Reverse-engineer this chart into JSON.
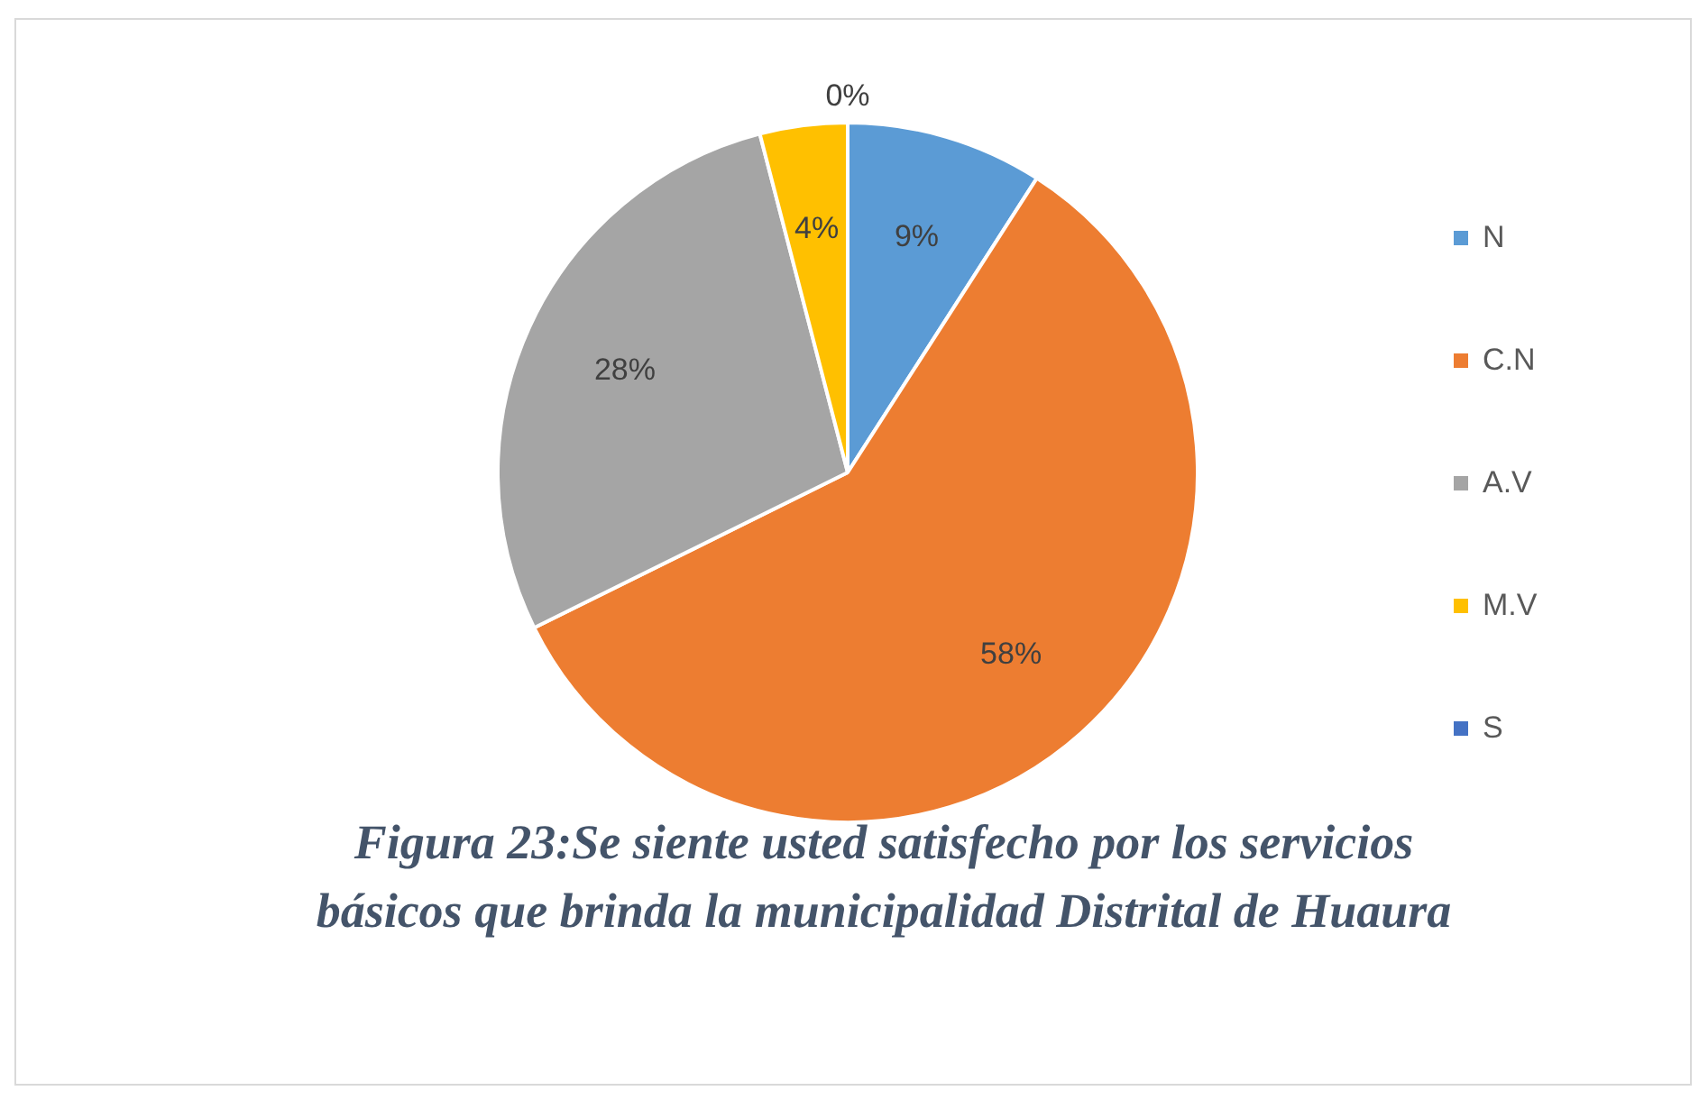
{
  "chart_data": {
    "type": "pie",
    "title": "Figura 23:Se siente usted satisfecho por los servicios básicos que brinda la municipalidad Distrital de Huaura",
    "categories": [
      "N",
      "C.N",
      "A.V",
      "M.V",
      "S"
    ],
    "values": [
      9,
      58,
      28,
      4,
      0
    ],
    "colors": [
      "#5b9bd5",
      "#ed7d31",
      "#a5a5a5",
      "#ffc000",
      "#4472c4"
    ],
    "value_labels": [
      "9%",
      "58%",
      "28%",
      "4%",
      "0%"
    ],
    "legend": "right"
  }
}
